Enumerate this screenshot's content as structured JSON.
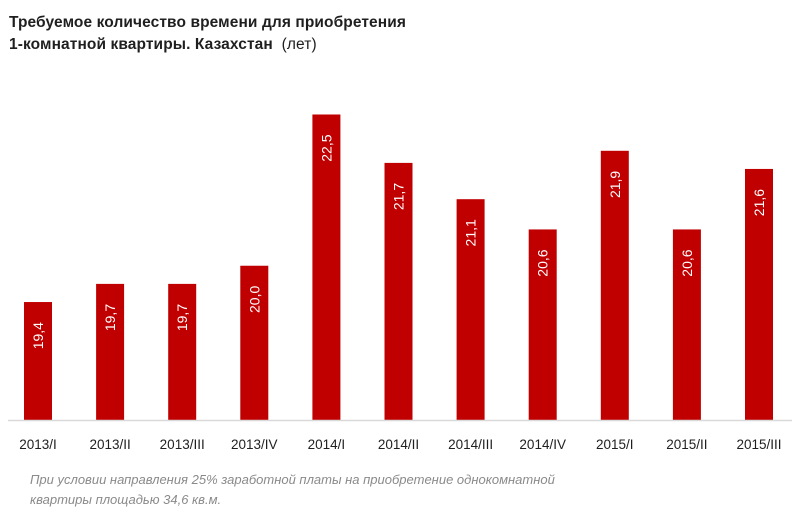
{
  "chart_data": {
    "type": "bar",
    "title_line1": "Требуемое количество  времени для приобретения",
    "title_line2": "1-комнатной  квартиры.  Казахстан",
    "title_unit": "(лет)",
    "xlabel": "",
    "ylabel": "",
    "categories": [
      "2013/I",
      "2013/II",
      "2013/III",
      "2013/IV",
      "2014/I",
      "2014/II",
      "2014/III",
      "2014/IV",
      "2015/I",
      "2015/II",
      "2015/III"
    ],
    "values": [
      19.4,
      19.7,
      19.7,
      20.0,
      22.5,
      21.7,
      21.1,
      20.6,
      21.9,
      20.6,
      21.6
    ],
    "value_labels": [
      "19,4",
      "19,7",
      "19,7",
      "20,0",
      "22,5",
      "21,7",
      "21,1",
      "20,6",
      "21,9",
      "20,6",
      "21,6"
    ],
    "ylim": [
      17.45,
      23.5
    ],
    "grid": false,
    "legend": "none",
    "bar_color": "#c00000",
    "label_color": "#ffffff",
    "axis_color": "#d9d9d9",
    "note_line1": "При условии направления 25% заработной платы на приобретение однокомнатной",
    "note_line2": "квартиры площадью 34,6 кв.м."
  }
}
